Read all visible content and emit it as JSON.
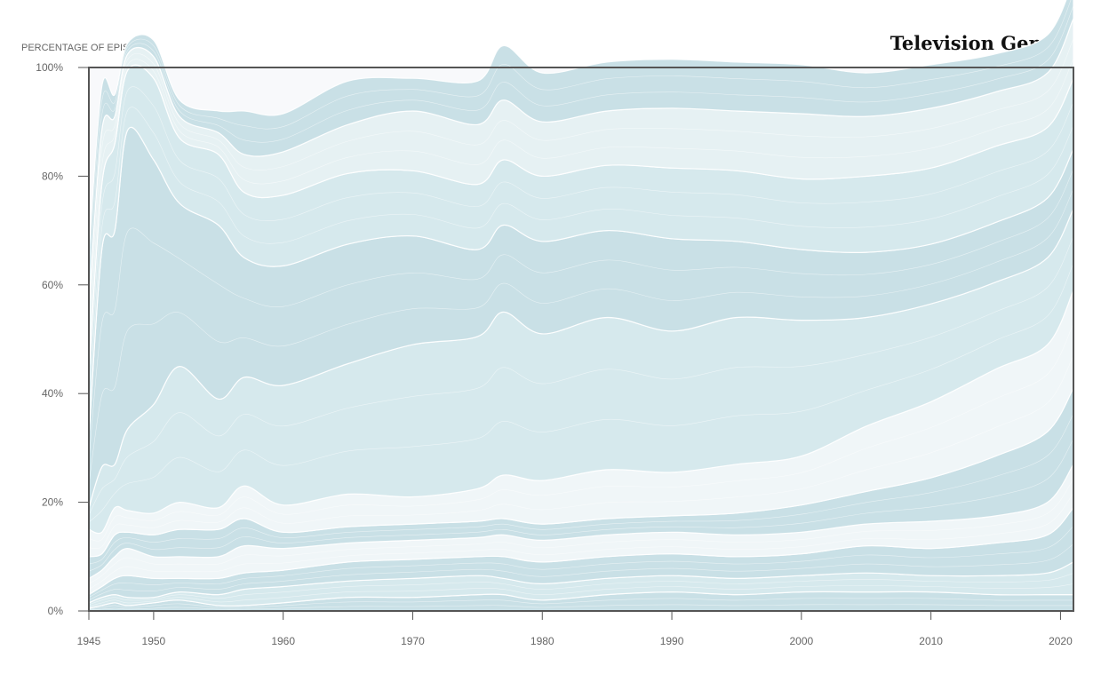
{
  "chart_data": {
    "type": "area",
    "title": "Television Genres",
    "ylabel": "PERCENTAGE OF EPISODES",
    "xlabel": "",
    "xlim": [
      1945,
      2021
    ],
    "ylim": [
      0,
      100
    ],
    "x_ticks": [
      {
        "value": 1945,
        "label": "1945"
      },
      {
        "value": 1950,
        "label": "1950"
      },
      {
        "value": 1960,
        "label": "1960"
      },
      {
        "value": 1970,
        "label": "1970"
      },
      {
        "value": 1980,
        "label": "1980"
      },
      {
        "value": 1990,
        "label": "1990"
      },
      {
        "value": 2000,
        "label": "2000"
      },
      {
        "value": 2010,
        "label": "2010"
      },
      {
        "value": 2020,
        "label": "2020"
      }
    ],
    "y_ticks": [
      {
        "value": 0,
        "label": "0%"
      },
      {
        "value": 20,
        "label": "20%"
      },
      {
        "value": 40,
        "label": "40%"
      },
      {
        "value": 60,
        "label": "60%"
      },
      {
        "value": 80,
        "label": "80%"
      },
      {
        "value": 100,
        "label": "100%"
      }
    ],
    "grid": false,
    "legend": "none",
    "colors": {
      "band_a": "#c9e0e6",
      "band_b": "#d6e9ed",
      "band_c": "#e6f1f3",
      "band_d": "#f0f6f8",
      "separator": "#ffffff",
      "plot_background": "#f8f9fb",
      "frame": "#555555"
    },
    "x": [
      1945,
      1946,
      1947,
      1948,
      1950,
      1952,
      1955,
      1957,
      1960,
      1965,
      1970,
      1975,
      1977,
      1980,
      1985,
      1990,
      1995,
      2000,
      2005,
      2010,
      2015,
      2019,
      2021
    ],
    "series": [
      {
        "values": [
          0.5,
          1,
          1.5,
          1,
          1.5,
          2,
          1,
          1,
          1.5,
          2.5,
          2.5,
          3,
          3,
          2,
          3,
          3.5,
          3,
          3.5,
          3.5,
          3.5,
          3,
          3,
          3
        ]
      },
      {
        "values": [
          1,
          1.5,
          1.5,
          1.5,
          1,
          1.5,
          2,
          3,
          3,
          3,
          3.5,
          3.5,
          3,
          3,
          3,
          3,
          3,
          3,
          3.5,
          3,
          3.5,
          4,
          6
        ]
      },
      {
        "values": [
          1.5,
          2,
          3,
          4,
          3.5,
          2.5,
          3,
          3,
          3,
          3.5,
          3.5,
          3.5,
          4,
          4,
          4,
          4,
          4,
          4,
          5,
          5,
          6,
          7,
          10
        ]
      },
      {
        "values": [
          3,
          3,
          4,
          5,
          4,
          4,
          4,
          5,
          4,
          3.5,
          3.5,
          3.5,
          4,
          4,
          4,
          4,
          4,
          4,
          4,
          5,
          5,
          6,
          8
        ]
      },
      {
        "values": [
          4,
          3,
          4,
          3,
          4,
          5,
          5,
          5,
          3,
          3,
          3,
          3,
          3,
          3,
          3,
          3,
          4,
          5,
          6,
          8,
          11,
          13,
          14
        ]
      },
      {
        "values": [
          5,
          4,
          5,
          4,
          4,
          5,
          4,
          6,
          5,
          6,
          5,
          6,
          8,
          8,
          9,
          8,
          9,
          9,
          12,
          14,
          16,
          16,
          18
        ]
      },
      {
        "values": [
          4,
          12,
          8,
          15,
          20,
          25,
          20,
          20,
          22,
          24,
          28,
          28,
          30,
          27,
          28,
          26,
          27,
          25,
          20,
          18,
          16,
          16,
          15
        ]
      },
      {
        "values": [
          13,
          40,
          43,
          55,
          45,
          30,
          32,
          22,
          22,
          22,
          20,
          16,
          16,
          17,
          16,
          17,
          14,
          13,
          12,
          11,
          11,
          11,
          11
        ]
      },
      {
        "values": [
          12,
          12,
          16,
          11,
          15,
          12,
          13,
          12,
          13,
          13,
          12,
          12,
          12,
          12,
          12,
          13,
          13,
          13,
          14,
          14,
          14,
          13,
          13
        ]
      },
      {
        "values": [
          12,
          10,
          5,
          3,
          4,
          4,
          4,
          7,
          8,
          9,
          11,
          11,
          11,
          10,
          10,
          11,
          11,
          12,
          11,
          11,
          10,
          10,
          11
        ]
      },
      {
        "values": [
          10,
          8,
          4,
          2,
          3,
          3,
          4,
          8,
          7,
          8,
          6,
          8,
          10,
          9,
          9,
          9,
          9,
          9,
          8,
          8,
          7,
          7,
          7
        ]
      }
    ]
  }
}
